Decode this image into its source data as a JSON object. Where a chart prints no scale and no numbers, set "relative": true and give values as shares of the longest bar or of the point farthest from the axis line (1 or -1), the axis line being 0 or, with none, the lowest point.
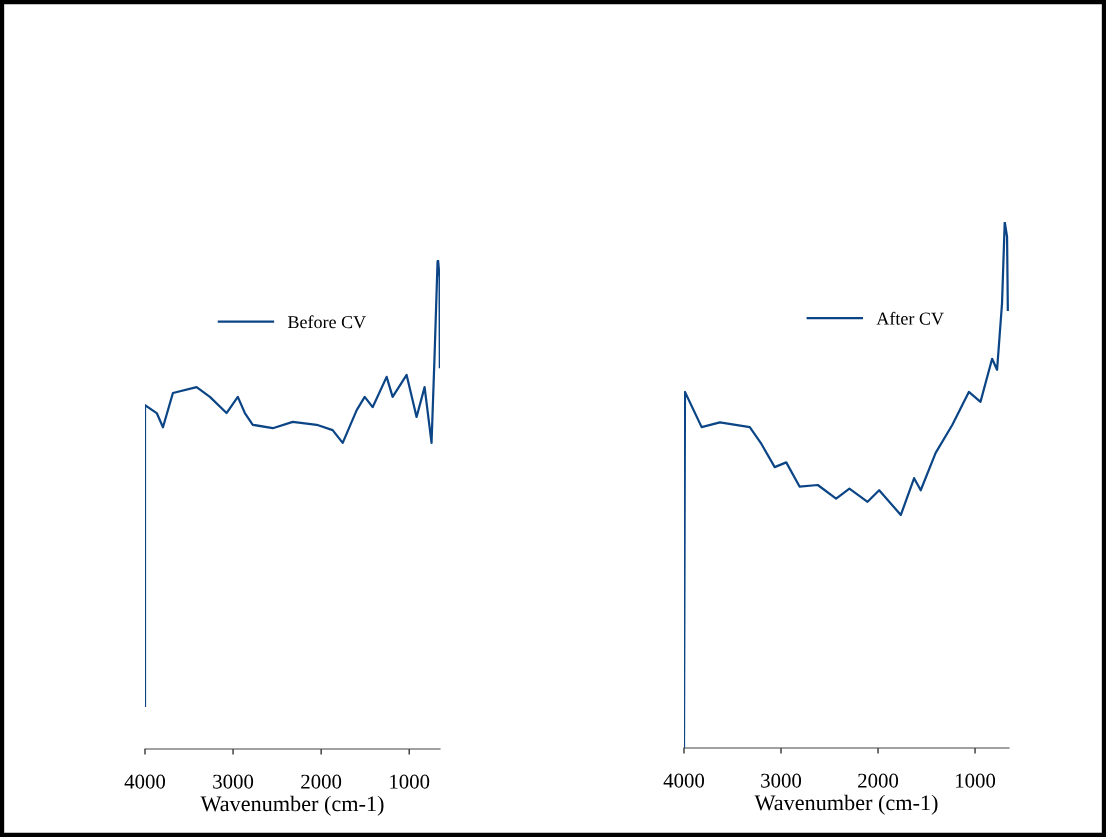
{
  "chart_data": [
    {
      "type": "line",
      "relative": true,
      "xlabel": "Wavenumber (cm-1)",
      "xlim": [
        4000,
        650
      ],
      "xticks": [
        4000,
        3000,
        2000,
        1000
      ],
      "tick_labels": "x",
      "legend": "top",
      "x": [
        4000,
        4000,
        3867,
        3796,
        3683,
        3414,
        3263,
        3074,
        2946,
        2866,
        2776,
        2549,
        2322,
        2050,
        1869,
        1755,
        1596,
        1505,
        1415,
        1256,
        1188,
        1029,
        916,
        825,
        746,
        712,
        678,
        672,
        655,
        652
      ],
      "series": [
        {
          "name": "Before CV",
          "color": "#0b4586",
          "values": [
            0.088,
            0.703,
            0.687,
            0.658,
            0.728,
            0.74,
            0.72,
            0.687,
            0.72,
            0.687,
            0.663,
            0.656,
            0.669,
            0.663,
            0.652,
            0.626,
            0.693,
            0.72,
            0.699,
            0.761,
            0.72,
            0.765,
            0.679,
            0.74,
            0.626,
            0.802,
            0.996,
            1.0,
            0.965,
            0.781
          ]
        }
      ]
    },
    {
      "type": "line",
      "relative": true,
      "xlabel": "Wavenumber (cm-1)",
      "xlim": [
        4000,
        650
      ],
      "xticks": [
        4000,
        3000,
        2000,
        1000
      ],
      "tick_labels": "x",
      "legend": "top right",
      "x": [
        4000,
        3990,
        3818,
        3630,
        3322,
        3202,
        3065,
        2946,
        2809,
        2621,
        2432,
        2295,
        2108,
        1988,
        1765,
        1628,
        1560,
        1406,
        1235,
        1064,
        944,
        824,
        773,
        722,
        694,
        670,
        662
      ],
      "series": [
        {
          "name": "After CV",
          "color": "#0b4586",
          "values": [
            0,
            0.677,
            0.61,
            0.619,
            0.61,
            0.578,
            0.534,
            0.543,
            0.497,
            0.5,
            0.474,
            0.493,
            0.468,
            0.49,
            0.443,
            0.513,
            0.49,
            0.561,
            0.614,
            0.677,
            0.658,
            0.74,
            0.719,
            0.845,
            1.0,
            0.972,
            0.833
          ]
        }
      ]
    }
  ]
}
